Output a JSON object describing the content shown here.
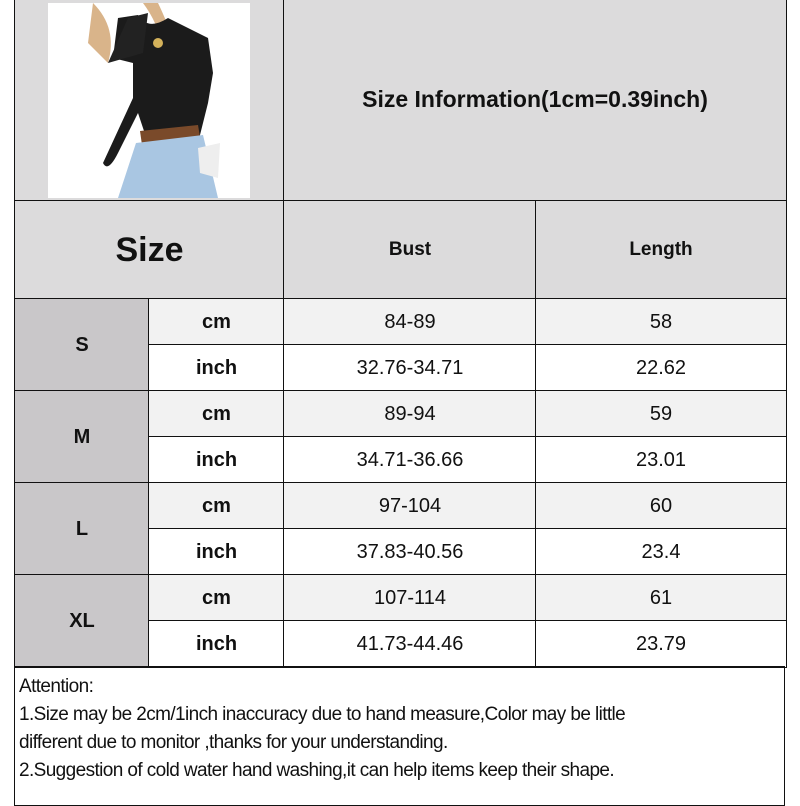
{
  "header": {
    "title": "Size Information(1cm=0.39inch)"
  },
  "table": {
    "size_label": "Size",
    "columns": [
      "Bust",
      "Length"
    ],
    "rows": [
      {
        "size": "S",
        "cm": {
          "unit": "cm",
          "bust": "84-89",
          "length": "58"
        },
        "inch": {
          "unit": "inch",
          "bust": "32.76-34.71",
          "length": "22.62"
        }
      },
      {
        "size": "M",
        "cm": {
          "unit": "cm",
          "bust": "89-94",
          "length": "59"
        },
        "inch": {
          "unit": "inch",
          "bust": "34.71-36.66",
          "length": "23.01"
        }
      },
      {
        "size": "L",
        "cm": {
          "unit": "cm",
          "bust": "97-104",
          "length": "60"
        },
        "inch": {
          "unit": "inch",
          "bust": "37.83-40.56",
          "length": "23.4"
        }
      },
      {
        "size": "XL",
        "cm": {
          "unit": "cm",
          "bust": "107-114",
          "length": "61"
        },
        "inch": {
          "unit": "inch",
          "bust": "41.73-44.46",
          "length": "23.79"
        }
      }
    ]
  },
  "attention": {
    "lines": [
      "Attention:",
      "1.Size may be 2cm/1inch inaccuracy due to hand measure,Color may be little",
      "different due to monitor ,thanks for your understanding.",
      "2.Suggestion of cold water hand washing,it can help items keep their shape."
    ]
  },
  "colors": {
    "header_bg": "#dcdbdc",
    "size_bg": "#c9c7c9",
    "cm_row_bg": "#f2f2f2",
    "inch_row_bg": "#ffffff"
  }
}
